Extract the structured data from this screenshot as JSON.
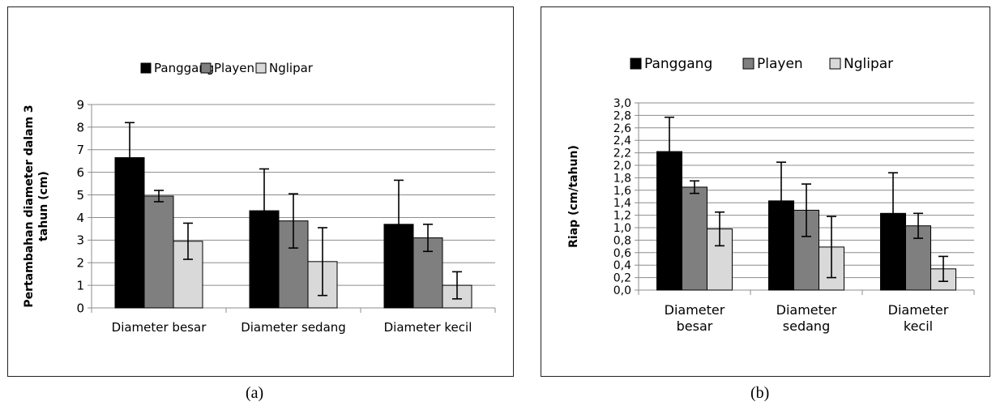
{
  "captions": {
    "a": "(a)",
    "b": "(b)"
  },
  "colors": {
    "Panggang": "#000000",
    "Playen": "#7f7f7f",
    "Nglipar": "#d9d9d9"
  },
  "chart_data": [
    {
      "type": "bar",
      "panel": "a",
      "title": "",
      "xlabel": "",
      "ylabel": "Pertambahan diameter dalam 3 tahun (cm)",
      "ylim": [
        0,
        9
      ],
      "yticks": [
        "0",
        "1",
        "2",
        "3",
        "4",
        "5",
        "6",
        "7",
        "8",
        "9"
      ],
      "grid": true,
      "legend_position": "top",
      "categories": [
        "Diameter besar",
        "Diameter sedang",
        "Diameter kecil"
      ],
      "series": [
        {
          "name": "Panggang",
          "values": [
            6.65,
            4.3,
            3.7
          ],
          "error": [
            1.55,
            1.85,
            1.95
          ]
        },
        {
          "name": "Playen",
          "values": [
            4.95,
            3.85,
            3.1
          ],
          "error": [
            0.25,
            1.2,
            0.6
          ]
        },
        {
          "name": "Nglipar",
          "values": [
            2.95,
            2.05,
            1.0
          ],
          "error": [
            0.8,
            1.5,
            0.6
          ]
        }
      ]
    },
    {
      "type": "bar",
      "panel": "b",
      "title": "",
      "xlabel": "",
      "ylabel": "Riap (cm/tahun)",
      "ylim": [
        0,
        3.0
      ],
      "yticks": [
        "0,0",
        "0,2",
        "0,4",
        "0,6",
        "0,8",
        "1,0",
        "1,2",
        "1,4",
        "1,6",
        "1,8",
        "2,0",
        "2,2",
        "2,4",
        "2,6",
        "2,8",
        "3,0"
      ],
      "grid": true,
      "legend_position": "top",
      "categories": [
        "Diameter besar",
        "Diameter sedang",
        "Diameter kecil"
      ],
      "series": [
        {
          "name": "Panggang",
          "values": [
            2.22,
            1.43,
            1.23
          ],
          "error": [
            0.55,
            0.62,
            0.65
          ]
        },
        {
          "name": "Playen",
          "values": [
            1.65,
            1.28,
            1.03
          ],
          "error": [
            0.1,
            0.42,
            0.2
          ]
        },
        {
          "name": "Nglipar",
          "values": [
            0.98,
            0.69,
            0.34
          ],
          "error": [
            0.27,
            0.49,
            0.2
          ]
        }
      ]
    }
  ]
}
